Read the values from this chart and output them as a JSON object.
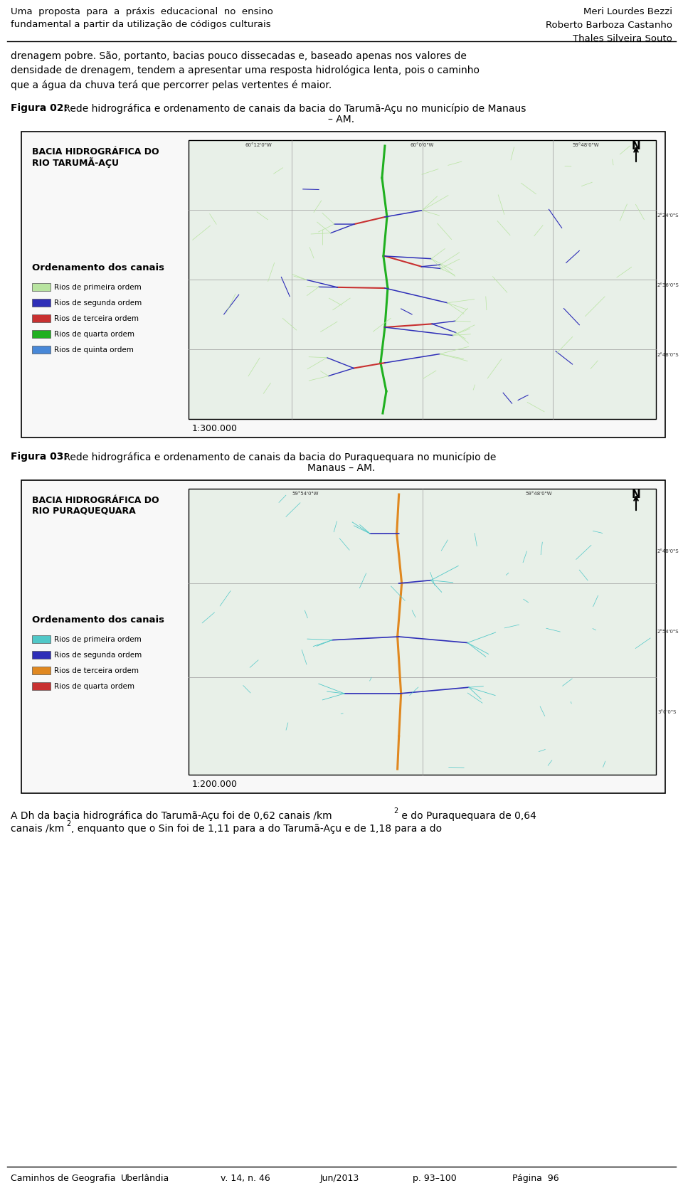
{
  "header_left": "Uma  proposta  para  a  práxis  educacional  no  ensino\nfundamental a partir da utilização de códigos culturais",
  "header_right": "Meri Lourdes Bezzi\nRoberto Barboza Castanho\nThales Silveira Souto",
  "para1": "drenagem pobre. São, portanto, bacias pouco dissecadas e, baseado apenas nos valores de\ndensidade de drenagem, tendem a apresentar uma resposta hidrológica lenta, pois o caminho\nque a água da chuva terá que percorrer pelas vertentes é maior.",
  "fig02_label_bold": "Figura 02:",
  "fig02_label_rest": " Rede hidrográfica e ordenamento de canais da bacia do Tarumã-Açu no município de Manaus",
  "fig02_label_line2": "– AM.",
  "fig03_label_bold": "Figura 03:",
  "fig03_label_rest": " Rede hidrográfica e ordenamento de canais da bacia do Puraquequara no município de",
  "fig03_label_line2": "Manaus – AM.",
  "para2_line1": "A Dh da bacia hidrográfica do Tarumã-Açu foi de 0,62 canais /km",
  "para2_sup1": "2",
  "para2_rest1": " e do Puraquequara de 0,64",
  "para2_line2": "canais /km",
  "para2_sup2": "2",
  "para2_rest2": ", enquanto que o Sin foi de 1,11 para a do Tarumã-Açu e de 1,18 para a do",
  "footer_items": [
    "Caminhos de Geografia",
    "Uberlândia",
    "v. 14, n. 46",
    "Jun/2013",
    "p. 93–100",
    "Página  96"
  ],
  "map1_title_line1": "BACIA HIDROGRÁFICA DO",
  "map1_title_line2": "RIO TARUMÃ-AÇU",
  "map1_legend_title": "Ordenamento dos canais",
  "map1_legend": [
    {
      "color": "#b8e4a0",
      "label": "Rios de primeira ordem"
    },
    {
      "color": "#2e2eb8",
      "label": "Rios de segunda ordem"
    },
    {
      "color": "#c83030",
      "label": "Rios de terceira ordem"
    },
    {
      "color": "#20b020",
      "label": "Rios de quarta ordem"
    },
    {
      "color": "#4888d8",
      "label": "Rios de quinta ordem"
    }
  ],
  "map1_scale": "1:300.000",
  "map2_title_line1": "BACIA HIDROGRÁFICA DO",
  "map2_title_line2": "RIO PURAQUEQUARA",
  "map2_legend_title": "Ordenamento dos canais",
  "map2_legend": [
    {
      "color": "#50c8c8",
      "label": "Rios de primeira ordem"
    },
    {
      "color": "#2e2eb8",
      "label": "Rios de segunda ordem"
    },
    {
      "color": "#e08820",
      "label": "Rios de terceira ordem"
    },
    {
      "color": "#c83030",
      "label": "Rios de quarta ordem"
    }
  ],
  "map2_scale": "1:200.000",
  "bg_color": "#ffffff",
  "text_color": "#000000",
  "box_edge": "#000000"
}
